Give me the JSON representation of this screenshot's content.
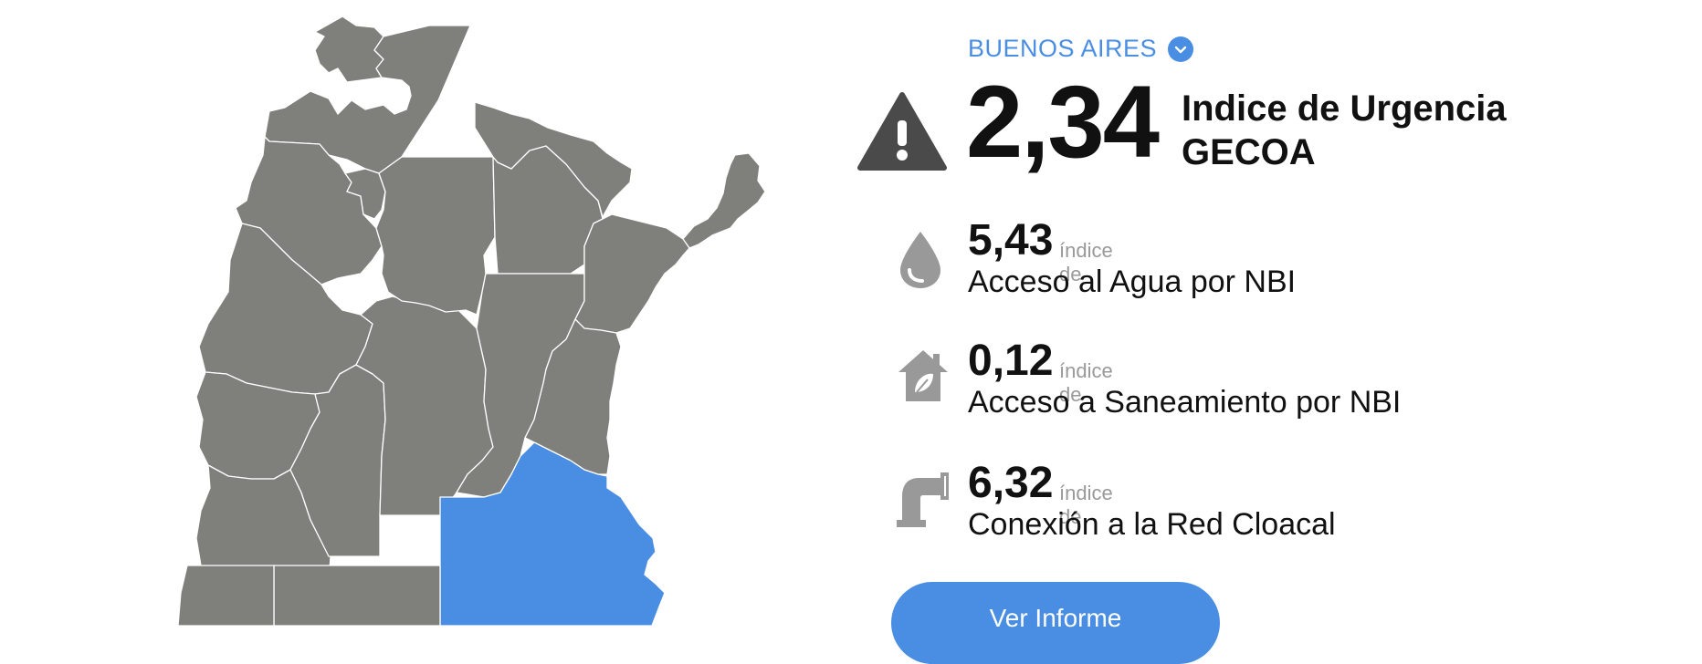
{
  "region": {
    "name": "BUENOS AIRES",
    "chevron_icon": "chevron-down-icon"
  },
  "main": {
    "icon": "warning-icon",
    "value": "2,34",
    "label_line1": "Indice de Urgencia",
    "label_line2": "GECOA"
  },
  "indicators": [
    {
      "icon": "water-drop-icon",
      "value": "5,43",
      "prefix": "índice de",
      "name": "Acceso al Agua por NBI"
    },
    {
      "icon": "house-leaf-icon",
      "value": "0,12",
      "prefix": "índice de",
      "name": "Acceso a Saneamiento por NBI"
    },
    {
      "icon": "pipe-icon",
      "value": "6,32",
      "prefix": "índice de",
      "name": "Conexión a la Red Cloacal"
    }
  ],
  "actions": {
    "report_label": "Ver Informe"
  },
  "colors": {
    "accent": "#4a8ee4",
    "province": "#7f7f7c",
    "text": "#111111",
    "muted": "#999999"
  }
}
